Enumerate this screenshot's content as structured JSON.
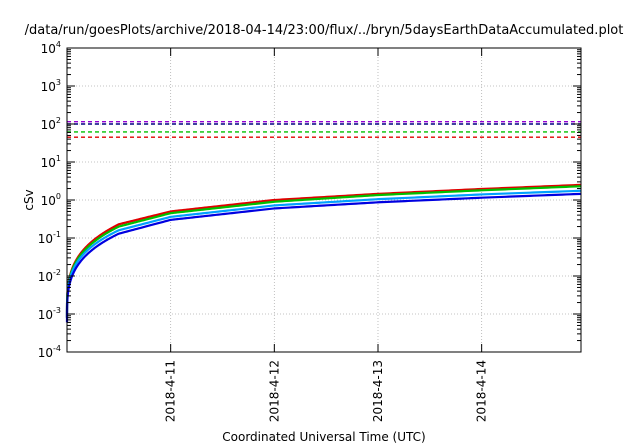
{
  "chart_data": {
    "type": "line",
    "title": "/data/run/goesPlots/archive/2018-04-14/23:00/flux/../bryn/5daysEarthDataAccumulated.plot",
    "xlabel": "Coordinated Universal Time (UTC)",
    "ylabel": "cSv",
    "yscale": "log",
    "ylim": [
      0.0001,
      10000
    ],
    "xlim": [
      "2018-04-10 00:00",
      "2018-04-14 23:00"
    ],
    "x_ticks": [
      "2018-4-11",
      "2018-4-12",
      "2018-4-13",
      "2018-4-14"
    ],
    "y_ticks": [
      {
        "base": "10",
        "exp": "-4"
      },
      {
        "base": "10",
        "exp": "-3"
      },
      {
        "base": "10",
        "exp": "-2"
      },
      {
        "base": "10",
        "exp": "-1"
      },
      {
        "base": "10",
        "exp": "0"
      },
      {
        "base": "10",
        "exp": "1"
      },
      {
        "base": "10",
        "exp": "2"
      },
      {
        "base": "10",
        "exp": "3"
      },
      {
        "base": "10",
        "exp": "4"
      }
    ],
    "grid": true,
    "thresholds": [
      {
        "value": 115,
        "color": "#9400d3",
        "style": "dashed"
      },
      {
        "value": 100,
        "color": "#000080",
        "style": "dashed"
      },
      {
        "value": 62,
        "color": "#00c000",
        "style": "dashed"
      },
      {
        "value": 45,
        "color": "#e00000",
        "style": "dashed"
      }
    ],
    "series": [
      {
        "color": "#e00000",
        "x": [
          "2018-04-10 00:00",
          "2018-04-10 12:00",
          "2018-04-11 00:00",
          "2018-04-12 00:00",
          "2018-04-13 00:00",
          "2018-04-14 00:00",
          "2018-04-14 23:00"
        ],
        "y": [
          0.0008,
          0.23,
          0.5,
          1.0,
          1.45,
          1.95,
          2.5
        ]
      },
      {
        "color": "#00c000",
        "x": [
          "2018-04-10 00:00",
          "2018-04-10 12:00",
          "2018-04-11 00:00",
          "2018-04-12 00:00",
          "2018-04-13 00:00",
          "2018-04-14 00:00",
          "2018-04-14 23:00"
        ],
        "y": [
          0.0008,
          0.2,
          0.45,
          0.9,
          1.35,
          1.8,
          2.3
        ]
      },
      {
        "color": "#00a0ff",
        "x": [
          "2018-04-10 00:00",
          "2018-04-10 12:00",
          "2018-04-11 00:00",
          "2018-04-12 00:00",
          "2018-04-13 00:00",
          "2018-04-14 00:00",
          "2018-04-14 23:00"
        ],
        "y": [
          0.0008,
          0.16,
          0.36,
          0.72,
          1.05,
          1.4,
          1.75
        ]
      },
      {
        "color": "#0000e0",
        "x": [
          "2018-04-10 00:00",
          "2018-04-10 12:00",
          "2018-04-11 00:00",
          "2018-04-12 00:00",
          "2018-04-13 00:00",
          "2018-04-14 00:00",
          "2018-04-14 23:00"
        ],
        "y": [
          0.0006,
          0.13,
          0.3,
          0.6,
          0.87,
          1.15,
          1.45
        ]
      }
    ]
  }
}
